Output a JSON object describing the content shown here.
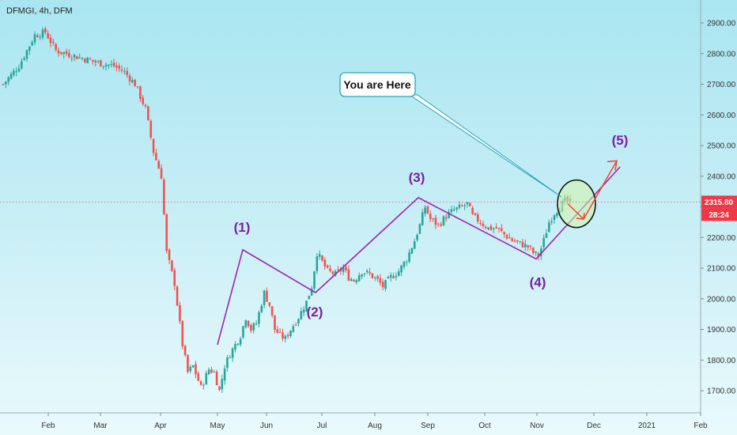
{
  "symbol": "DFMGI, 4h, DFM",
  "callout": "You are Here",
  "current_price_label": "2315.80",
  "countdown_label": "28:24",
  "colors": {
    "up": "#26a69a",
    "down": "#ef5350",
    "wave": "#9c27b0",
    "projection": "#f44336",
    "callout_border": "#26a6b8",
    "badge": "#f23645"
  },
  "chart_data": {
    "type": "candlestick",
    "y_axis": {
      "ticks": [
        1700,
        1800,
        1900,
        2000,
        2100,
        2200,
        2300,
        2400,
        2500,
        2600,
        2700,
        2800,
        2900
      ],
      "tick_labels": [
        "1700.00",
        "1800.00",
        "1900.00",
        "2000.00",
        "2100.00",
        "2200.00",
        "2300.00",
        "2400.00",
        "2500.00",
        "2600.00",
        "2700.00",
        "2800.00",
        "2900.00"
      ],
      "range": [
        1640,
        2990
      ]
    },
    "x_axis": {
      "labels": [
        "Feb",
        "Mar",
        "Apr",
        "May",
        "Jun",
        "Jul",
        "Aug",
        "Sep",
        "Oct",
        "Nov",
        "Dec",
        "2021",
        "Feb"
      ]
    },
    "price_path": [
      [
        0,
        2700
      ],
      [
        6,
        2760
      ],
      [
        12,
        2860
      ],
      [
        16,
        2870
      ],
      [
        20,
        2810
      ],
      [
        28,
        2790
      ],
      [
        36,
        2770
      ],
      [
        42,
        2760
      ],
      [
        46,
        2740
      ],
      [
        50,
        2700
      ],
      [
        54,
        2620
      ],
      [
        57,
        2480
      ],
      [
        60,
        2400
      ],
      [
        62,
        2150
      ],
      [
        65,
        2050
      ],
      [
        68,
        1850
      ],
      [
        70,
        1760
      ],
      [
        72,
        1780
      ],
      [
        75,
        1710
      ],
      [
        78,
        1770
      ],
      [
        80,
        1760
      ],
      [
        82,
        1700
      ],
      [
        84,
        1780
      ],
      [
        86,
        1820
      ],
      [
        88,
        1850
      ],
      [
        90,
        1880
      ],
      [
        92,
        1940
      ],
      [
        94,
        1900
      ],
      [
        96,
        1920
      ],
      [
        99,
        2020
      ],
      [
        101,
        1980
      ],
      [
        103,
        1900
      ],
      [
        105,
        1880
      ],
      [
        107,
        1870
      ],
      [
        109,
        1900
      ],
      [
        112,
        1940
      ],
      [
        115,
        1990
      ],
      [
        117,
        2040
      ],
      [
        119,
        2150
      ],
      [
        121,
        2120
      ],
      [
        123,
        2090
      ],
      [
        126,
        2080
      ],
      [
        129,
        2100
      ],
      [
        131,
        2070
      ],
      [
        133,
        2060
      ],
      [
        136,
        2090
      ],
      [
        139,
        2080
      ],
      [
        142,
        2060
      ],
      [
        144,
        2040
      ],
      [
        147,
        2070
      ],
      [
        150,
        2090
      ],
      [
        153,
        2130
      ],
      [
        156,
        2190
      ],
      [
        158,
        2240
      ],
      [
        160,
        2300
      ],
      [
        162,
        2260
      ],
      [
        165,
        2240
      ],
      [
        168,
        2270
      ],
      [
        171,
        2290
      ],
      [
        174,
        2300
      ],
      [
        176,
        2310
      ],
      [
        178,
        2270
      ],
      [
        181,
        2250
      ],
      [
        184,
        2230
      ],
      [
        187,
        2230
      ],
      [
        190,
        2210
      ],
      [
        193,
        2190
      ],
      [
        196,
        2180
      ],
      [
        199,
        2170
      ],
      [
        201,
        2150
      ],
      [
        203,
        2140
      ],
      [
        205,
        2190
      ],
      [
        207,
        2250
      ],
      [
        209,
        2280
      ],
      [
        211,
        2300
      ],
      [
        213,
        2320
      ],
      [
        215,
        2315
      ]
    ],
    "wave_points": [
      {
        "date": "May",
        "value": 1850
      },
      {
        "date": "Jun",
        "value": 2160,
        "label": "(1)"
      },
      {
        "date": "Jul",
        "value": 2020,
        "label": "(2)"
      },
      {
        "date": "Sep",
        "value": 2330,
        "label": "(3)"
      },
      {
        "date": "Nov",
        "value": 2130,
        "label": "(4)"
      },
      {
        "date": "Dec",
        "value": 2430,
        "label": "(5)"
      }
    ],
    "projection": [
      2310,
      2260,
      2450
    ],
    "current_price": 2315.8
  }
}
